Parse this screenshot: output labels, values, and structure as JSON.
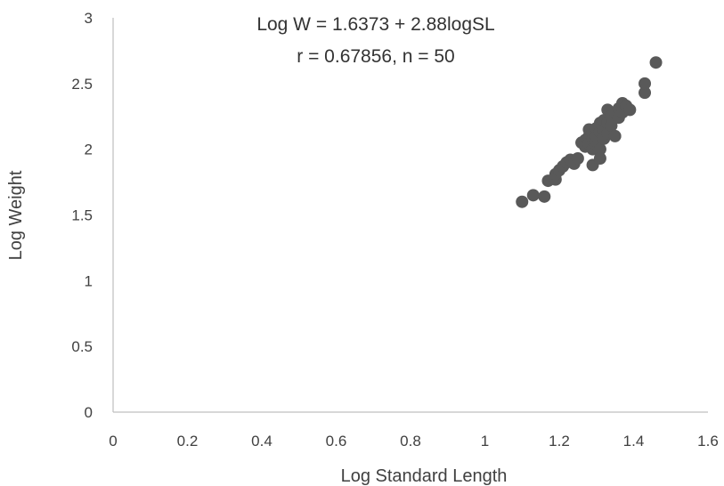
{
  "chart_data": {
    "type": "scatter",
    "title": "",
    "xlabel": "Log Standard Length",
    "ylabel": "Log Weight",
    "xlim": [
      0,
      1.6
    ],
    "ylim": [
      0,
      3
    ],
    "xticks": [
      "0",
      "0.2",
      "0.4",
      "0.6",
      "0.8",
      "1",
      "1.2",
      "1.4",
      "1.6"
    ],
    "yticks": [
      "0",
      "0.5",
      "1",
      "1.5",
      "2",
      "2.5",
      "3"
    ],
    "grid": false,
    "legend": "none",
    "annotations": [
      "Log W = 1.6373 + 2.88logSL",
      "r = 0.67856, n = 50"
    ],
    "marker_color": "#595959",
    "series": [
      {
        "points": [
          [
            1.1,
            1.6
          ],
          [
            1.13,
            1.65
          ],
          [
            1.16,
            1.64
          ],
          [
            1.17,
            1.76
          ],
          [
            1.19,
            1.77
          ],
          [
            1.19,
            1.81
          ],
          [
            1.2,
            1.84
          ],
          [
            1.21,
            1.87
          ],
          [
            1.22,
            1.9
          ],
          [
            1.23,
            1.92
          ],
          [
            1.24,
            1.89
          ],
          [
            1.25,
            1.93
          ],
          [
            1.26,
            2.05
          ],
          [
            1.27,
            2.07
          ],
          [
            1.27,
            2.02
          ],
          [
            1.28,
            2.1
          ],
          [
            1.28,
            2.04
          ],
          [
            1.28,
            2.15
          ],
          [
            1.29,
            2.08
          ],
          [
            1.29,
            2.12
          ],
          [
            1.29,
            1.88
          ],
          [
            1.29,
            2.0
          ],
          [
            1.3,
            2.03
          ],
          [
            1.3,
            2.16
          ],
          [
            1.3,
            2.06
          ],
          [
            1.3,
            2.1
          ],
          [
            1.31,
            2.18
          ],
          [
            1.31,
            2.0
          ],
          [
            1.31,
            2.13
          ],
          [
            1.31,
            1.93
          ],
          [
            1.31,
            2.2
          ],
          [
            1.32,
            2.08
          ],
          [
            1.32,
            2.15
          ],
          [
            1.32,
            2.22
          ],
          [
            1.33,
            2.12
          ],
          [
            1.33,
            2.3
          ],
          [
            1.33,
            2.2
          ],
          [
            1.34,
            2.25
          ],
          [
            1.34,
            2.18
          ],
          [
            1.35,
            2.28
          ],
          [
            1.35,
            2.1
          ],
          [
            1.36,
            2.31
          ],
          [
            1.36,
            2.24
          ],
          [
            1.37,
            2.35
          ],
          [
            1.37,
            2.28
          ],
          [
            1.38,
            2.33
          ],
          [
            1.39,
            2.3
          ],
          [
            1.43,
            2.43
          ],
          [
            1.43,
            2.5
          ],
          [
            1.46,
            2.66
          ]
        ]
      }
    ]
  }
}
